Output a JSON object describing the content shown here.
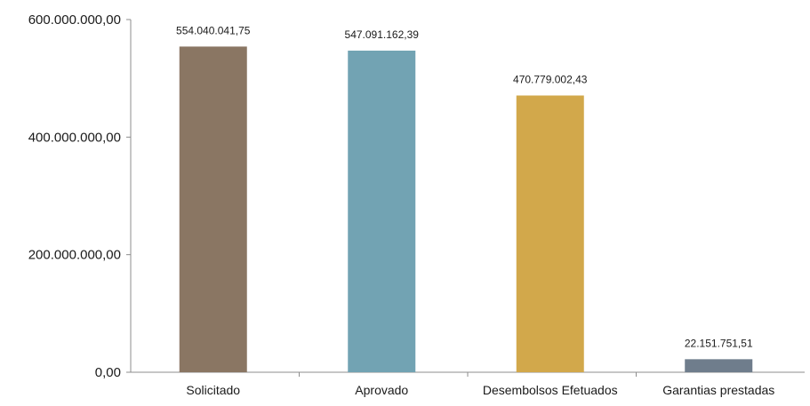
{
  "chart_data": {
    "type": "bar",
    "title": "",
    "xlabel": "",
    "ylabel": "",
    "categories": [
      "Solicitado",
      "Aprovado",
      "Desembolsos Efetuados",
      "Garantias prestadas"
    ],
    "values": [
      554040041.75,
      547091162.39,
      470779002.43,
      22151751.51
    ],
    "value_labels": [
      "554.040.041,75",
      "547.091.162,39",
      "470.779.002,43",
      "22.151.751,51"
    ],
    "colors": [
      "#8a7663",
      "#72a3b3",
      "#d2a84b",
      "#6f7d8c"
    ],
    "ylim": [
      0,
      600000000
    ],
    "yticks": [
      0,
      200000000,
      400000000,
      600000000
    ],
    "ytick_labels": [
      "0,00",
      "200.000.000,00",
      "400.000.000,00",
      "600.000.000,00"
    ],
    "grid": false,
    "legend": "none"
  }
}
